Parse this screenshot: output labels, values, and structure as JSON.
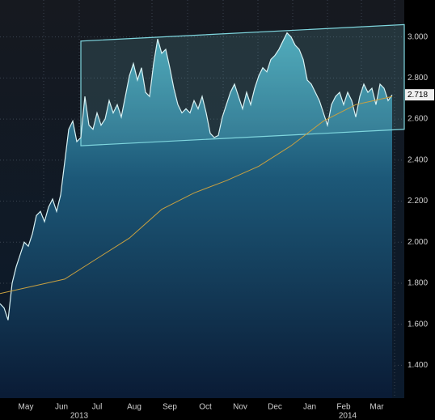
{
  "chart_data": {
    "type": "line",
    "x": [
      0,
      5,
      10,
      15,
      20,
      25,
      30,
      35,
      40,
      45,
      50,
      55,
      60,
      65,
      70,
      75,
      80,
      85,
      90,
      95,
      100,
      105,
      110,
      115,
      120,
      125,
      130,
      135,
      140,
      145,
      150,
      155,
      160,
      165,
      170,
      175,
      180,
      185,
      190,
      195,
      200,
      205,
      210,
      215,
      220,
      225,
      230,
      235,
      240,
      245,
      250,
      255,
      260,
      265,
      270,
      275,
      280,
      285,
      290,
      295,
      300,
      305,
      310,
      315,
      320,
      325,
      330,
      335,
      340,
      345,
      350,
      355,
      360,
      365,
      370,
      375,
      380,
      385,
      390,
      395,
      400,
      405,
      410,
      415,
      420,
      425,
      430,
      435,
      440,
      445,
      450,
      455,
      460,
      465,
      470,
      475,
      480,
      485
    ],
    "series": [
      {
        "color": "#d8f2f4",
        "values": [
          1.7,
          1.68,
          1.62,
          1.8,
          1.88,
          1.94,
          2.0,
          1.98,
          2.04,
          2.13,
          2.15,
          2.1,
          2.17,
          2.21,
          2.15,
          2.23,
          2.39,
          2.55,
          2.59,
          2.49,
          2.51,
          2.71,
          2.57,
          2.55,
          2.63,
          2.57,
          2.6,
          2.69,
          2.63,
          2.67,
          2.61,
          2.71,
          2.81,
          2.87,
          2.79,
          2.85,
          2.73,
          2.71,
          2.87,
          2.99,
          2.92,
          2.94,
          2.85,
          2.75,
          2.67,
          2.63,
          2.65,
          2.63,
          2.69,
          2.65,
          2.71,
          2.63,
          2.53,
          2.51,
          2.52,
          2.61,
          2.67,
          2.73,
          2.77,
          2.71,
          2.65,
          2.73,
          2.67,
          2.75,
          2.81,
          2.85,
          2.83,
          2.89,
          2.91,
          2.94,
          2.98,
          3.02,
          3.0,
          2.96,
          2.94,
          2.89,
          2.79,
          2.77,
          2.73,
          2.69,
          2.63,
          2.57,
          2.67,
          2.71,
          2.73,
          2.67,
          2.73,
          2.69,
          2.61,
          2.71,
          2.77,
          2.73,
          2.75,
          2.67,
          2.77,
          2.75,
          2.69,
          2.718
        ]
      }
    ],
    "moving_average": {
      "color": "#c8a040",
      "x": [
        0,
        80,
        120,
        160,
        200,
        240,
        280,
        320,
        360,
        400,
        440,
        485
      ],
      "values": [
        1.75,
        1.82,
        1.92,
        2.02,
        2.16,
        2.24,
        2.3,
        2.37,
        2.47,
        2.59,
        2.67,
        2.71
      ]
    },
    "channel": {
      "color": "#7fd6de",
      "x": [
        100,
        500
      ],
      "upper": [
        2.98,
        3.06
      ],
      "lower": [
        2.47,
        2.55
      ]
    },
    "last_value_label": "2.718",
    "xlim": [
      0,
      500
    ],
    "xticks": [
      {
        "value": 32,
        "label": "May"
      },
      {
        "value": 76,
        "label": "Jun"
      },
      {
        "value": 120,
        "label": "Jul"
      },
      {
        "value": 166,
        "label": "Aug"
      },
      {
        "value": 210,
        "label": "Sep"
      },
      {
        "value": 254,
        "label": "Oct"
      },
      {
        "value": 297,
        "label": "Nov"
      },
      {
        "value": 340,
        "label": "Dec"
      },
      {
        "value": 383,
        "label": "Jan"
      },
      {
        "value": 425,
        "label": "Feb"
      },
      {
        "value": 466,
        "label": "Mar"
      }
    ],
    "year_labels": [
      {
        "value": 98,
        "label": "2013"
      },
      {
        "value": 430,
        "label": "2014"
      }
    ],
    "ylim": [
      1.24,
      3.18
    ],
    "yticks": [
      {
        "value": 1.4,
        "label": "1.400"
      },
      {
        "value": 1.6,
        "label": "1.600"
      },
      {
        "value": 1.8,
        "label": "1.800"
      },
      {
        "value": 2.0,
        "label": "2.000"
      },
      {
        "value": 2.2,
        "label": "2.200"
      },
      {
        "value": 2.4,
        "label": "2.400"
      },
      {
        "value": 2.6,
        "label": "2.600"
      },
      {
        "value": 2.8,
        "label": "2.800"
      },
      {
        "value": 3.0,
        "label": "3.000"
      }
    ],
    "grid": true
  }
}
